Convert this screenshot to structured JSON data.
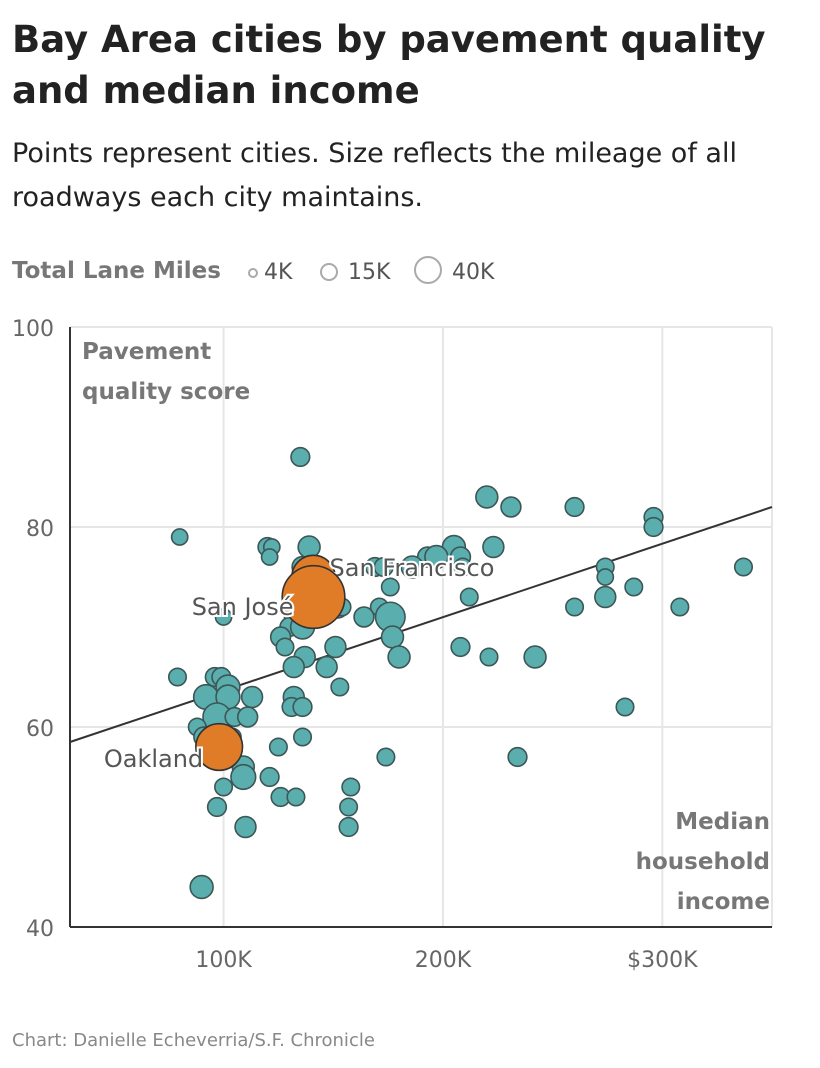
{
  "header": {
    "title": "Bay Area cities by pavement quality and median income",
    "subtitle": "Points represent cities. Size reflects the mileage of all roadways each city maintains."
  },
  "legend": {
    "title": "Total Lane Miles",
    "items": [
      {
        "label": "4K",
        "value": 4000
      },
      {
        "label": "15K",
        "value": 15000
      },
      {
        "label": "40K",
        "value": 40000
      }
    ]
  },
  "footer": {
    "credit": "Chart: Danielle Echeverria/S.F. Chronicle"
  },
  "colors": {
    "point_fill": "#5aaeae",
    "point_stroke": "#3d5656",
    "highlight_fill": "#e07b28",
    "trend_line": "#333333",
    "gridline": "#e6e6e6",
    "axis_label": "#777777"
  },
  "chart_data": {
    "type": "scatter",
    "title": "Bay Area cities by pavement quality and median income",
    "subtitle": "Points represent cities. Size reflects the mileage of all roadways each city maintains.",
    "xlabel": "Median household income",
    "ylabel": "Pavement quality score",
    "xlim": [
      30000,
      350000
    ],
    "ylim": [
      40,
      100
    ],
    "x_ticks": [
      {
        "value": 100000,
        "label": "100K"
      },
      {
        "value": 200000,
        "label": "200K"
      },
      {
        "value": 300000,
        "label": "$300K"
      }
    ],
    "y_ticks": [
      {
        "value": 40,
        "label": "40"
      },
      {
        "value": 60,
        "label": "60"
      },
      {
        "value": 80,
        "label": "80"
      },
      {
        "value": 100,
        "label": "100"
      }
    ],
    "grid": true,
    "trend_line": {
      "x": [
        30000,
        350000
      ],
      "y": [
        58.5,
        82
      ]
    },
    "highlighted": [
      {
        "label": "San Francisco",
        "x": 141000,
        "y": 75,
        "lane_miles": 4300
      },
      {
        "label": "San José",
        "x": 141000,
        "y": 73,
        "lane_miles": 9000
      },
      {
        "label": "Oakland",
        "x": 98000,
        "y": 58,
        "lane_miles": 5000
      }
    ],
    "points": [
      {
        "x": 135000,
        "y": 87,
        "lane_miles": 800
      },
      {
        "x": 220000,
        "y": 83,
        "lane_miles": 1100
      },
      {
        "x": 231000,
        "y": 82,
        "lane_miles": 900
      },
      {
        "x": 260000,
        "y": 82,
        "lane_miles": 800
      },
      {
        "x": 296000,
        "y": 81,
        "lane_miles": 800
      },
      {
        "x": 296000,
        "y": 80,
        "lane_miles": 800
      },
      {
        "x": 80000,
        "y": 79,
        "lane_miles": 600
      },
      {
        "x": 120000,
        "y": 78,
        "lane_miles": 800
      },
      {
        "x": 122000,
        "y": 78,
        "lane_miles": 600
      },
      {
        "x": 139000,
        "y": 78,
        "lane_miles": 1100
      },
      {
        "x": 205000,
        "y": 78,
        "lane_miles": 1200
      },
      {
        "x": 223000,
        "y": 78,
        "lane_miles": 1000
      },
      {
        "x": 121000,
        "y": 77,
        "lane_miles": 600
      },
      {
        "x": 193000,
        "y": 77,
        "lane_miles": 900
      },
      {
        "x": 197000,
        "y": 77,
        "lane_miles": 1200
      },
      {
        "x": 208000,
        "y": 77,
        "lane_miles": 900
      },
      {
        "x": 136000,
        "y": 76,
        "lane_miles": 1000
      },
      {
        "x": 169000,
        "y": 76,
        "lane_miles": 800
      },
      {
        "x": 173000,
        "y": 76,
        "lane_miles": 800
      },
      {
        "x": 186000,
        "y": 76,
        "lane_miles": 1100
      },
      {
        "x": 209000,
        "y": 76,
        "lane_miles": 700
      },
      {
        "x": 274000,
        "y": 76,
        "lane_miles": 700
      },
      {
        "x": 337000,
        "y": 76,
        "lane_miles": 700
      },
      {
        "x": 274000,
        "y": 75,
        "lane_miles": 600
      },
      {
        "x": 287000,
        "y": 74,
        "lane_miles": 700
      },
      {
        "x": 176000,
        "y": 74,
        "lane_miles": 700
      },
      {
        "x": 212000,
        "y": 73,
        "lane_miles": 700
      },
      {
        "x": 274000,
        "y": 73,
        "lane_miles": 1000
      },
      {
        "x": 152000,
        "y": 72,
        "lane_miles": 1100
      },
      {
        "x": 154000,
        "y": 72,
        "lane_miles": 700
      },
      {
        "x": 171000,
        "y": 72,
        "lane_miles": 700
      },
      {
        "x": 260000,
        "y": 72,
        "lane_miles": 700
      },
      {
        "x": 308000,
        "y": 72,
        "lane_miles": 700
      },
      {
        "x": 100000,
        "y": 71,
        "lane_miles": 600
      },
      {
        "x": 132000,
        "y": 71,
        "lane_miles": 800
      },
      {
        "x": 164000,
        "y": 71,
        "lane_miles": 900
      },
      {
        "x": 176000,
        "y": 71,
        "lane_miles": 2000
      },
      {
        "x": 130000,
        "y": 70,
        "lane_miles": 800
      },
      {
        "x": 136000,
        "y": 70,
        "lane_miles": 1300
      },
      {
        "x": 126000,
        "y": 69,
        "lane_miles": 900
      },
      {
        "x": 177000,
        "y": 69,
        "lane_miles": 1100
      },
      {
        "x": 128000,
        "y": 68,
        "lane_miles": 700
      },
      {
        "x": 151000,
        "y": 68,
        "lane_miles": 1000
      },
      {
        "x": 208000,
        "y": 68,
        "lane_miles": 800
      },
      {
        "x": 137000,
        "y": 67,
        "lane_miles": 1000
      },
      {
        "x": 180000,
        "y": 67,
        "lane_miles": 1100
      },
      {
        "x": 221000,
        "y": 67,
        "lane_miles": 700
      },
      {
        "x": 242000,
        "y": 67,
        "lane_miles": 1100
      },
      {
        "x": 132000,
        "y": 66,
        "lane_miles": 1000
      },
      {
        "x": 147000,
        "y": 66,
        "lane_miles": 1000
      },
      {
        "x": 79000,
        "y": 65,
        "lane_miles": 700
      },
      {
        "x": 96000,
        "y": 65,
        "lane_miles": 800
      },
      {
        "x": 99000,
        "y": 65,
        "lane_miles": 800
      },
      {
        "x": 102000,
        "y": 64,
        "lane_miles": 1300
      },
      {
        "x": 153000,
        "y": 64,
        "lane_miles": 700
      },
      {
        "x": 92000,
        "y": 63,
        "lane_miles": 1400
      },
      {
        "x": 102000,
        "y": 63,
        "lane_miles": 1300
      },
      {
        "x": 113000,
        "y": 63,
        "lane_miles": 1000
      },
      {
        "x": 132000,
        "y": 63,
        "lane_miles": 1000
      },
      {
        "x": 131000,
        "y": 62,
        "lane_miles": 800
      },
      {
        "x": 136000,
        "y": 62,
        "lane_miles": 800
      },
      {
        "x": 283000,
        "y": 62,
        "lane_miles": 700
      },
      {
        "x": 97000,
        "y": 61,
        "lane_miles": 1800
      },
      {
        "x": 105000,
        "y": 61,
        "lane_miles": 800
      },
      {
        "x": 111000,
        "y": 61,
        "lane_miles": 900
      },
      {
        "x": 88000,
        "y": 60,
        "lane_miles": 700
      },
      {
        "x": 91000,
        "y": 59,
        "lane_miles": 900
      },
      {
        "x": 101000,
        "y": 59,
        "lane_miles": 900
      },
      {
        "x": 104000,
        "y": 59,
        "lane_miles": 700
      },
      {
        "x": 136000,
        "y": 59,
        "lane_miles": 700
      },
      {
        "x": 125000,
        "y": 58,
        "lane_miles": 700
      },
      {
        "x": 99000,
        "y": 57,
        "lane_miles": 800
      },
      {
        "x": 174000,
        "y": 57,
        "lane_miles": 700
      },
      {
        "x": 234000,
        "y": 57,
        "lane_miles": 800
      },
      {
        "x": 109000,
        "y": 56,
        "lane_miles": 1100
      },
      {
        "x": 109000,
        "y": 55,
        "lane_miles": 1400
      },
      {
        "x": 121000,
        "y": 55,
        "lane_miles": 800
      },
      {
        "x": 100000,
        "y": 54,
        "lane_miles": 700
      },
      {
        "x": 158000,
        "y": 54,
        "lane_miles": 700
      },
      {
        "x": 126000,
        "y": 53,
        "lane_miles": 800
      },
      {
        "x": 133000,
        "y": 53,
        "lane_miles": 700
      },
      {
        "x": 97000,
        "y": 52,
        "lane_miles": 800
      },
      {
        "x": 157000,
        "y": 52,
        "lane_miles": 700
      },
      {
        "x": 110000,
        "y": 50,
        "lane_miles": 1000
      },
      {
        "x": 157000,
        "y": 50,
        "lane_miles": 800
      },
      {
        "x": 90000,
        "y": 44,
        "lane_miles": 1200
      }
    ]
  }
}
